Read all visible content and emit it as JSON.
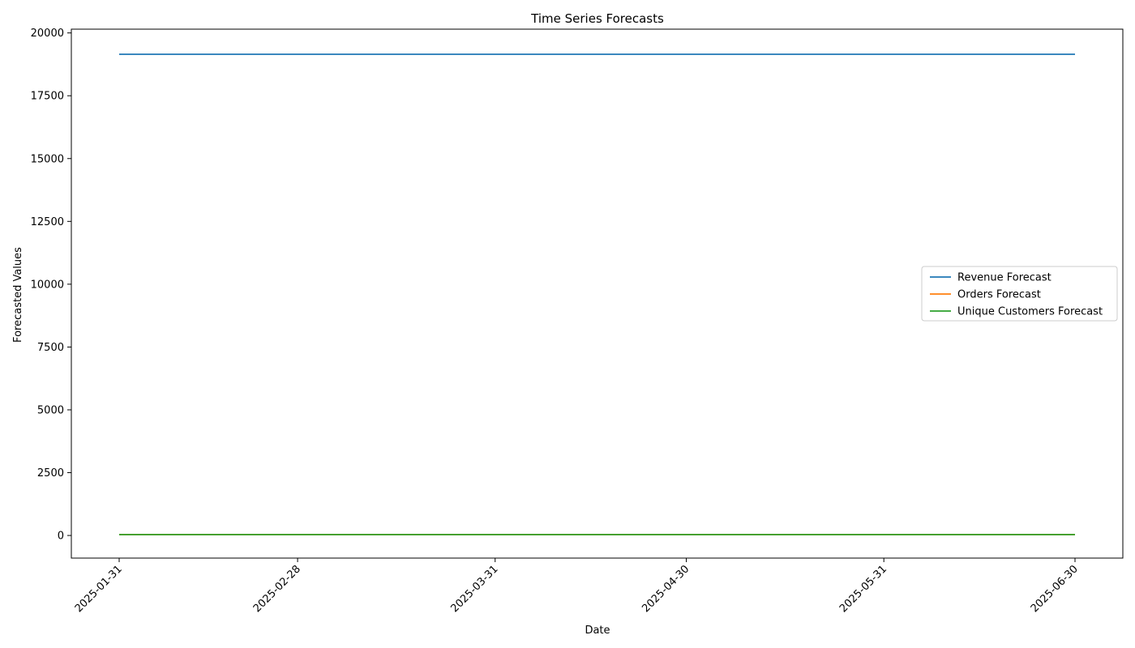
{
  "chart_data": {
    "type": "line",
    "title": "Time Series Forecasts",
    "xlabel": "Date",
    "ylabel": "Forecasted Values",
    "x": [
      "2025-01-31",
      "2025-02-28",
      "2025-03-31",
      "2025-04-30",
      "2025-05-31",
      "2025-06-30"
    ],
    "x_ticks": [
      "2025-01-31",
      "2025-02-28",
      "2025-03-31",
      "2025-04-30",
      "2025-05-31",
      "2025-06-30"
    ],
    "y_ticks": [
      0,
      2500,
      5000,
      7500,
      10000,
      12500,
      15000,
      17500,
      20000
    ],
    "ylim": [
      -900,
      20150
    ],
    "grid": false,
    "legend_position": "center-right",
    "series": [
      {
        "name": "Revenue Forecast",
        "color": "#1f77b4",
        "values": [
          19150,
          19150,
          19150,
          19150,
          19150,
          19150
        ]
      },
      {
        "name": "Orders Forecast",
        "color": "#ff7f0e",
        "values": [
          35,
          35,
          35,
          35,
          35,
          35
        ]
      },
      {
        "name": "Unique Customers Forecast",
        "color": "#2ca02c",
        "values": [
          35,
          35,
          35,
          35,
          35,
          35
        ]
      }
    ]
  }
}
